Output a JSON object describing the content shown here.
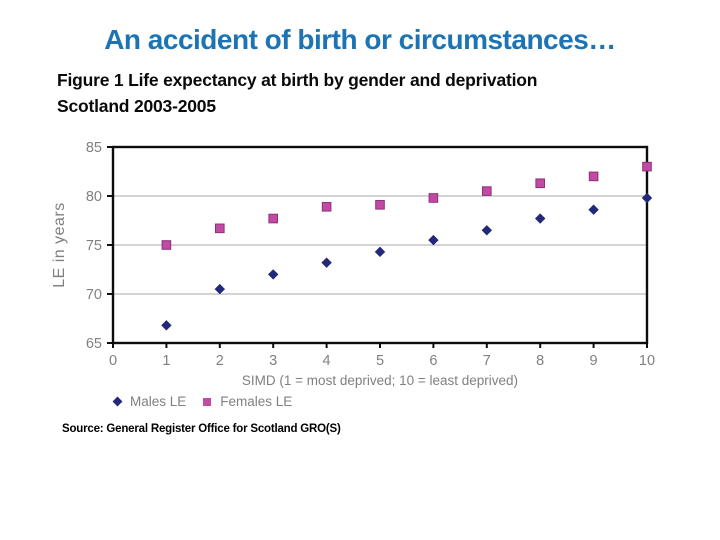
{
  "slide": {
    "title": "An accident of birth or circumstances…",
    "figure_title_line1": "Figure 1 Life expectancy at birth by gender and deprivation",
    "figure_title_line2": "Scotland 2003-2005",
    "source": "Source: General Register Office for Scotland GRO(S)"
  },
  "colors": {
    "title_blue": "#1c74b4",
    "male": "#232878",
    "female": "#c14ba3",
    "female_border": "#8e2f7d",
    "axis_text": "#808080",
    "grid": "#a9a9a9",
    "axis_line": "#0d0d0d"
  },
  "chart_data": {
    "type": "scatter",
    "title": "Figure 1 Life expectancy at birth by gender and deprivation Scotland 2003-2005",
    "x": [
      1,
      2,
      3,
      4,
      5,
      6,
      7,
      8,
      9,
      10
    ],
    "series": [
      {
        "name": "Males LE",
        "marker": "diamond",
        "color": "#232878",
        "values": [
          66.8,
          70.5,
          72.0,
          73.2,
          74.3,
          75.5,
          76.5,
          77.7,
          78.6,
          79.8
        ]
      },
      {
        "name": "Females LE",
        "marker": "square",
        "color": "#c14ba3",
        "border": "#8e2f7d",
        "values": [
          75.0,
          76.7,
          77.7,
          78.9,
          79.1,
          79.8,
          80.5,
          81.3,
          82.0,
          83.0
        ]
      }
    ],
    "xlabel": "SIMD (1 = most deprived; 10 = least deprived)",
    "ylabel": "LE in years",
    "xlim": [
      0,
      10
    ],
    "ylim": [
      65,
      85
    ],
    "xticks": [
      0,
      1,
      2,
      3,
      4,
      5,
      6,
      7,
      8,
      9,
      10
    ],
    "yticks": [
      65,
      70,
      75,
      80,
      85
    ],
    "gridlines": [
      70,
      75,
      80
    ],
    "grid": true,
    "legend_position": "bottom-left"
  }
}
